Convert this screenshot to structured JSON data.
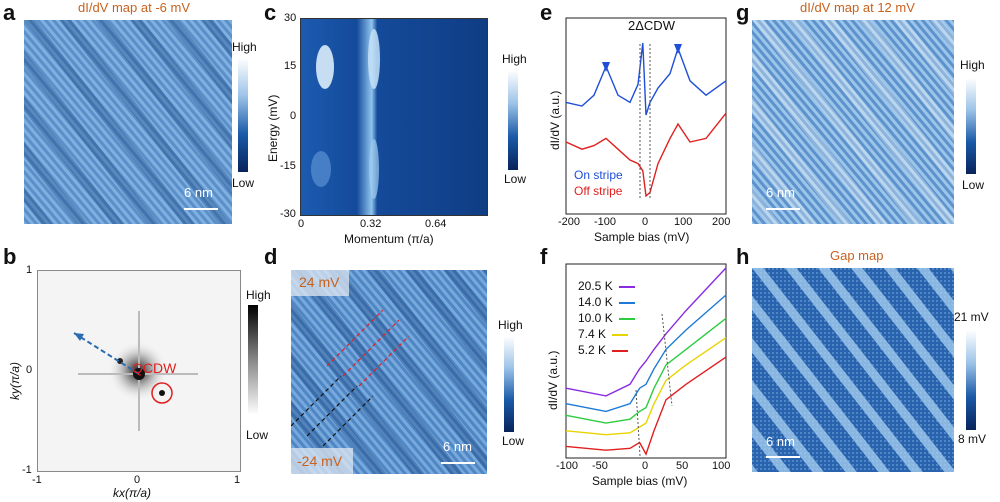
{
  "panels": {
    "a": {
      "letter": "a",
      "title": "dI/dV map at -6 mV",
      "scale": "6 nm",
      "cbar_high": "High",
      "cbar_low": "Low"
    },
    "b": {
      "letter": "b",
      "ylabel": "ky(π/a)",
      "xlabel": "kx(π/a)",
      "qcdw": "QCDW",
      "cbar_high": "High",
      "cbar_low": "Low",
      "xticks": [
        "-1",
        "0",
        "1"
      ],
      "yticks": [
        "1",
        "0",
        "-1"
      ]
    },
    "c": {
      "letter": "c",
      "ylabel": "Energy (mV)",
      "xlabel": "Momentum (π/a)",
      "cbar_high": "High",
      "cbar_low": "Low",
      "yticks": [
        "30",
        "15",
        "0",
        "-15",
        "-30"
      ],
      "xticks": [
        "0",
        "0.32",
        "0.64"
      ]
    },
    "d": {
      "letter": "d",
      "top_label": "24 mV",
      "bottom_label": "-24 mV",
      "scale": "6 nm",
      "cbar_high": "High",
      "cbar_low": "Low"
    },
    "e": {
      "letter": "e",
      "gap_label": "2ΔCDW",
      "ylabel": "dI/dV (a.u.)",
      "xlabel": "Sample bias (mV)",
      "legend": [
        {
          "name": "On stripe",
          "color": "#1f4fd8"
        },
        {
          "name": "Off stripe",
          "color": "#e02020"
        }
      ],
      "xticks": [
        "-200",
        "-100",
        "0",
        "100",
        "200"
      ]
    },
    "f": {
      "letter": "f",
      "ylabel": "dI/dV (a.u.)",
      "xlabel": "Sample bias (mV)",
      "legend": [
        {
          "name": "20.5 K",
          "color": "#8a2be2"
        },
        {
          "name": "14.0 K",
          "color": "#1e7ad6"
        },
        {
          "name": "10.0 K",
          "color": "#2ecc40"
        },
        {
          "name": "7.4 K",
          "color": "#e8d400"
        },
        {
          "name": "5.2 K",
          "color": "#e02020"
        }
      ],
      "xticks": [
        "-100",
        "-50",
        "0",
        "50",
        "100"
      ]
    },
    "g": {
      "letter": "g",
      "title": "dI/dV map at 12 mV",
      "scale": "6 nm",
      "cbar_high": "High",
      "cbar_low": "Low"
    },
    "h": {
      "letter": "h",
      "title": "Gap map",
      "scale": "6 nm",
      "cbar_high": "21 mV",
      "cbar_low": "8 mV"
    }
  },
  "chart_data": [
    {
      "type": "line",
      "panel": "e",
      "xlabel": "Sample bias (mV)",
      "ylabel": "dI/dV (a.u.)",
      "xlim": [
        -200,
        200
      ],
      "series": [
        {
          "name": "On stripe",
          "x": [
            -200,
            -160,
            -130,
            -100,
            -70,
            -40,
            -20,
            -8,
            0,
            10,
            30,
            60,
            80,
            110,
            150,
            200
          ],
          "y": [
            0.62,
            0.6,
            0.66,
            0.82,
            0.66,
            0.62,
            0.72,
            0.95,
            0.55,
            0.62,
            0.7,
            0.78,
            0.92,
            0.74,
            0.66,
            0.74
          ]
        },
        {
          "name": "Off stripe",
          "x": [
            -200,
            -160,
            -130,
            -100,
            -70,
            -40,
            -20,
            -8,
            0,
            10,
            30,
            60,
            80,
            110,
            150,
            200
          ],
          "y": [
            0.4,
            0.36,
            0.38,
            0.42,
            0.36,
            0.3,
            0.28,
            0.24,
            0.1,
            0.12,
            0.28,
            0.42,
            0.5,
            0.4,
            0.42,
            0.56
          ]
        }
      ]
    },
    {
      "type": "line",
      "panel": "f",
      "xlabel": "Sample bias (mV)",
      "ylabel": "dI/dV (a.u.)",
      "xlim": [
        -100,
        100
      ],
      "series": [
        {
          "name": "20.5 K",
          "x": [
            -100,
            -50,
            -20,
            -8,
            0,
            10,
            25,
            50,
            100
          ],
          "y": [
            0.36,
            0.32,
            0.38,
            0.46,
            0.5,
            0.56,
            0.64,
            0.76,
            0.98
          ]
        },
        {
          "name": "14.0 K",
          "x": [
            -100,
            -50,
            -20,
            -8,
            0,
            10,
            25,
            50,
            100
          ],
          "y": [
            0.28,
            0.24,
            0.28,
            0.36,
            0.38,
            0.46,
            0.56,
            0.66,
            0.84
          ]
        },
        {
          "name": "10.0 K",
          "x": [
            -100,
            -50,
            -20,
            -8,
            0,
            10,
            25,
            50,
            100
          ],
          "y": [
            0.22,
            0.18,
            0.2,
            0.24,
            0.26,
            0.36,
            0.48,
            0.56,
            0.72
          ]
        },
        {
          "name": "7.4 K",
          "x": [
            -100,
            -50,
            -20,
            -8,
            0,
            10,
            25,
            50,
            100
          ],
          "y": [
            0.14,
            0.12,
            0.13,
            0.16,
            0.18,
            0.28,
            0.4,
            0.48,
            0.62
          ]
        },
        {
          "name": "5.2 K",
          "x": [
            -100,
            -50,
            -20,
            -8,
            0,
            10,
            25,
            50,
            100
          ],
          "y": [
            0.06,
            0.04,
            0.05,
            0.08,
            0.02,
            0.14,
            0.3,
            0.38,
            0.52
          ]
        }
      ]
    }
  ]
}
